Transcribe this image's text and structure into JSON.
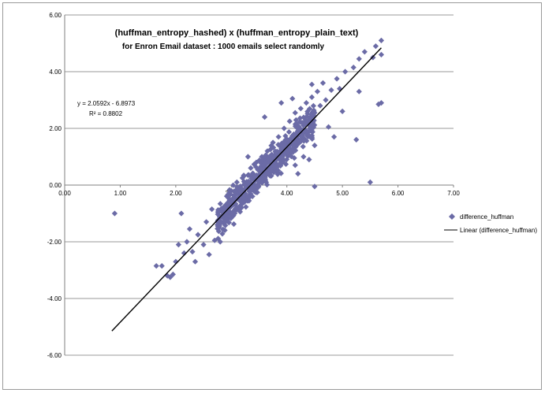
{
  "chart_data": {
    "type": "scatter",
    "title_line1": "(huffman_entropy_hashed) x (huffman_entropy_plain_text)",
    "title_line2": "for Enron Email dataset : 1000 emails select randomly",
    "xlabel": "",
    "ylabel": "",
    "xlim": [
      0,
      7
    ],
    "ylim": [
      -6,
      6
    ],
    "x_ticks": [
      "0.00",
      "1.00",
      "2.00",
      "3.00",
      "4.00",
      "5.00",
      "6.00",
      "7.00"
    ],
    "y_ticks": [
      "6.00",
      "4.00",
      "2.00",
      "0.00",
      "-2.00",
      "-4.00",
      "-6.00"
    ],
    "grid": "horizontal",
    "legend_position": "right",
    "series": [
      {
        "name": "difference_huffman",
        "kind": "scatter",
        "marker": "diamond",
        "color": "#6b6ba6",
        "points": [
          [
            0.9,
            -1.0
          ],
          [
            1.65,
            -2.85
          ],
          [
            1.75,
            -2.85
          ],
          [
            1.85,
            -3.2
          ],
          [
            1.9,
            -3.25
          ],
          [
            1.95,
            -3.15
          ],
          [
            2.0,
            -2.7
          ],
          [
            2.05,
            -2.1
          ],
          [
            2.1,
            -1.0
          ],
          [
            2.15,
            -2.4
          ],
          [
            2.2,
            -2.0
          ],
          [
            2.25,
            -1.55
          ],
          [
            2.3,
            -2.35
          ],
          [
            2.35,
            -2.7
          ],
          [
            2.4,
            -1.75
          ],
          [
            2.5,
            -2.1
          ],
          [
            2.55,
            -1.3
          ],
          [
            2.6,
            -2.45
          ],
          [
            2.65,
            -0.85
          ],
          [
            2.7,
            -1.95
          ],
          [
            2.75,
            -1.4
          ],
          [
            2.8,
            -2.0
          ],
          [
            2.85,
            -1.1
          ],
          [
            2.9,
            -0.7
          ],
          [
            2.95,
            -0.45
          ],
          [
            3.0,
            -0.2
          ],
          [
            3.05,
            -0.9
          ],
          [
            3.1,
            0.1
          ],
          [
            3.15,
            -0.55
          ],
          [
            3.2,
            0.25
          ],
          [
            3.25,
            -0.3
          ],
          [
            3.3,
            0.35
          ],
          [
            3.35,
            0.6
          ],
          [
            3.4,
            0.0
          ],
          [
            3.45,
            0.8
          ],
          [
            3.5,
            0.3
          ],
          [
            3.55,
            1.0
          ],
          [
            3.6,
            0.55
          ],
          [
            3.65,
            1.2
          ],
          [
            3.7,
            0.85
          ],
          [
            3.75,
            1.5
          ],
          [
            3.8,
            1.05
          ],
          [
            3.85,
            1.7
          ],
          [
            3.9,
            1.3
          ],
          [
            3.95,
            2.0
          ],
          [
            4.0,
            1.4
          ],
          [
            4.05,
            2.25
          ],
          [
            4.1,
            1.6
          ],
          [
            4.15,
            2.55
          ],
          [
            4.2,
            1.9
          ],
          [
            4.25,
            2.7
          ],
          [
            4.3,
            2.1
          ],
          [
            4.35,
            2.9
          ],
          [
            4.4,
            2.3
          ],
          [
            4.45,
            3.1
          ],
          [
            4.5,
            2.55
          ],
          [
            4.55,
            3.3
          ],
          [
            4.6,
            2.8
          ],
          [
            4.65,
            3.6
          ],
          [
            4.7,
            3.0
          ],
          [
            4.75,
            2.05
          ],
          [
            4.8,
            3.35
          ],
          [
            4.85,
            1.7
          ],
          [
            4.9,
            3.75
          ],
          [
            4.95,
            3.4
          ],
          [
            5.0,
            2.6
          ],
          [
            5.05,
            4.0
          ],
          [
            5.2,
            4.15
          ],
          [
            5.25,
            1.6
          ],
          [
            5.3,
            4.45
          ],
          [
            5.4,
            4.7
          ],
          [
            5.5,
            0.1
          ],
          [
            5.55,
            4.5
          ],
          [
            5.6,
            4.9
          ],
          [
            5.65,
            2.85
          ],
          [
            5.7,
            2.9
          ],
          [
            5.7,
            4.6
          ],
          [
            5.7,
            5.1
          ],
          [
            4.15,
            0.7
          ],
          [
            4.3,
            1.0
          ],
          [
            4.5,
            1.4
          ],
          [
            3.6,
            2.4
          ],
          [
            3.9,
            2.9
          ],
          [
            4.4,
            0.9
          ],
          [
            4.2,
            0.4
          ],
          [
            3.3,
            1.0
          ],
          [
            4.5,
            -0.05
          ],
          [
            5.3,
            3.3
          ],
          [
            4.45,
            3.55
          ],
          [
            4.1,
            3.05
          ]
        ]
      },
      {
        "name": "Linear (difference_huffman)",
        "kind": "trendline",
        "color": "#000000",
        "slope": 2.0592,
        "intercept": -6.8973,
        "x_range": [
          0.85,
          5.7
        ]
      }
    ],
    "equation_label": "y = 2.0592x - 6.8973",
    "r2_label": "R² = 0.8802"
  }
}
